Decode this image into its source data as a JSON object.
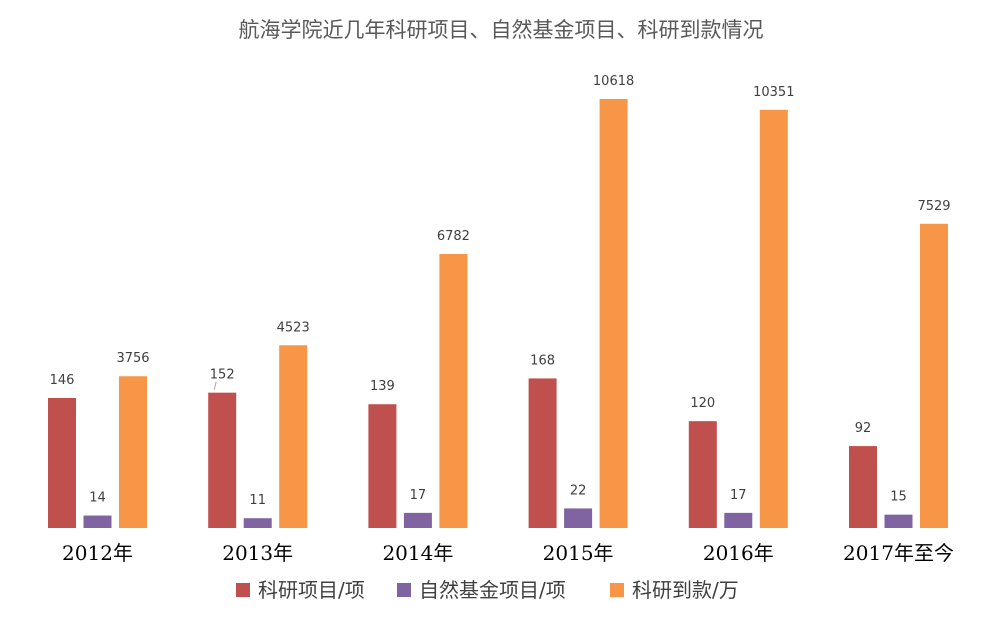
{
  "chart_data": {
    "type": "bar",
    "title": "航海学院近几年科研项目、自然基金项目、科研到款情况",
    "categories": [
      "2012年",
      "2013年",
      "2014年",
      "2015年",
      "2016年",
      "2017年至今"
    ],
    "series": [
      {
        "name": "科研项目/项",
        "color": "#C0504D",
        "values": [
          146,
          152,
          139,
          168,
          120,
          92
        ]
      },
      {
        "name": "自然基金项目/项",
        "color": "#8064A2",
        "values": [
          14,
          11,
          17,
          22,
          17,
          15
        ]
      },
      {
        "name": "科研到款/万",
        "color": "#F79646",
        "values": [
          3756,
          4523,
          6782,
          10618,
          10351,
          7529
        ]
      }
    ],
    "xlabel": "",
    "ylabel": "",
    "grid": false,
    "legend": "bottom"
  }
}
